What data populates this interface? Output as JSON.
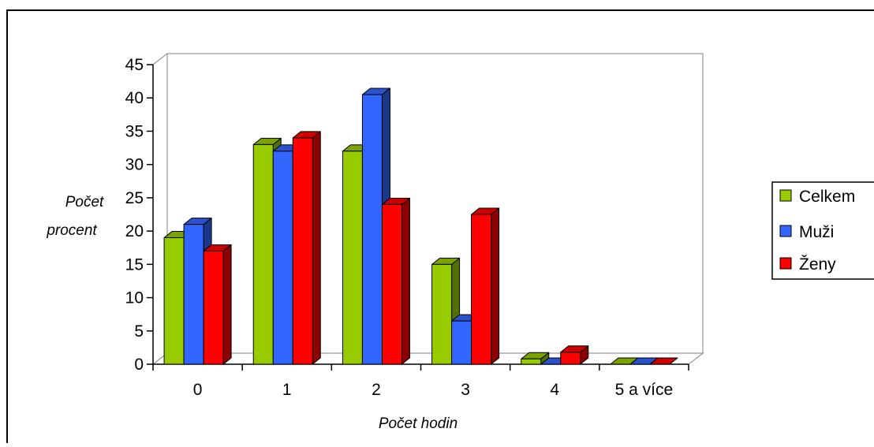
{
  "chart_data": {
    "type": "bar",
    "variant": "3d-clustered-column",
    "title": "",
    "xlabel": "Počet hodin",
    "ylabel_lines": [
      "Počet",
      "procent"
    ],
    "categories": [
      "0",
      "1",
      "2",
      "3",
      "4",
      "5 a více"
    ],
    "yticks": [
      "0",
      "5",
      "10",
      "15",
      "20",
      "25",
      "30",
      "35",
      "40",
      "45"
    ],
    "ylim": [
      0,
      45
    ],
    "grid": false,
    "legend_position": "right",
    "series": [
      {
        "name": "Celkem",
        "color": "#99cc00",
        "values": [
          19,
          33,
          32,
          15,
          0.8,
          0
        ]
      },
      {
        "name": "Muži",
        "color": "#3366ff",
        "values": [
          21,
          32,
          40.5,
          6.5,
          0,
          0
        ]
      },
      {
        "name": "Ženy",
        "color": "#ff0000",
        "values": [
          17,
          34,
          24,
          22.5,
          1.8,
          0
        ]
      }
    ]
  }
}
